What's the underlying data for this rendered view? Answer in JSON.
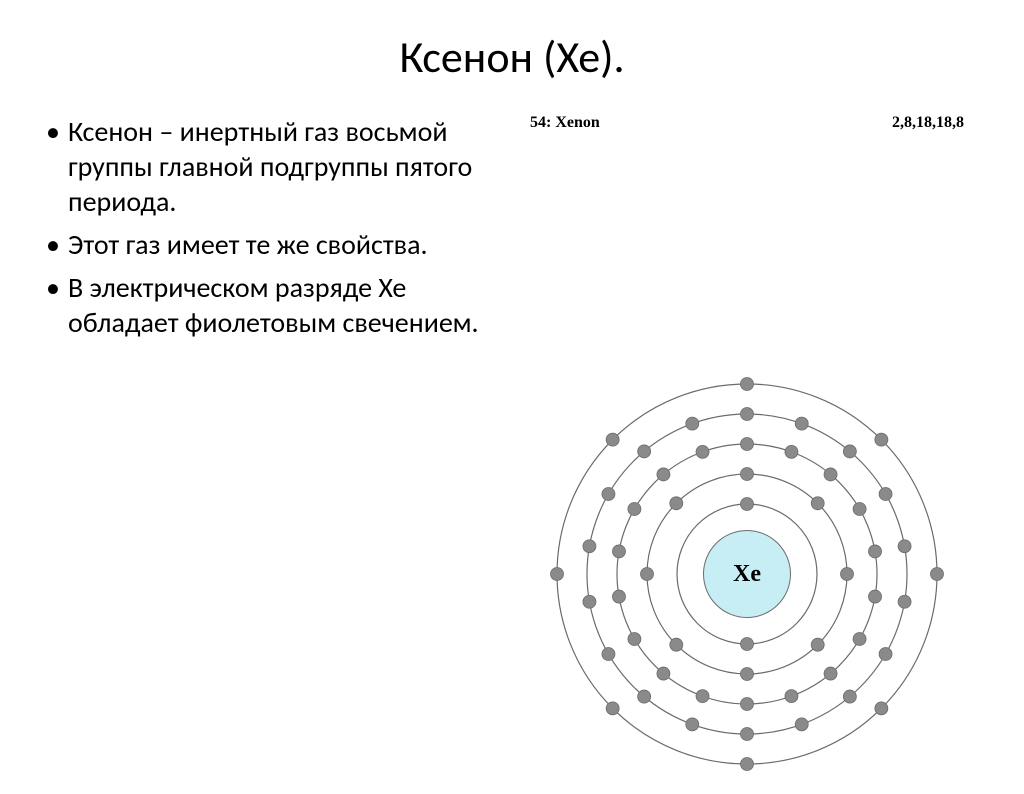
{
  "title": "Ксенон (Хе).",
  "bullets": [
    "Ксенон – инертный газ восьмой группы главной подгруппы пятого периода.",
    "Этот газ имеет те же свойства.",
    "В электрическом разряде Xe обладает фиолетовым свечением."
  ],
  "atom": {
    "label_left": "54: Xenon",
    "label_right": "2,8,18,18,8",
    "nucleus_label": "Xe",
    "nucleus_fill": "#c7eef4",
    "nucleus_stroke": "#6b6b6b",
    "nucleus_radius": 44,
    "nucleus_fontsize": 24,
    "nucleus_text_color": "#000000",
    "shell_stroke": "#6b6b6b",
    "shell_stroke_width": 1.2,
    "electron_fill": "#8a8a8a",
    "electron_stroke": "#6b6b6b",
    "electron_radius": 6.5,
    "shells": [
      {
        "radius": 70,
        "count": 2
      },
      {
        "radius": 100,
        "count": 8
      },
      {
        "radius": 130,
        "count": 18
      },
      {
        "radius": 160,
        "count": 18
      },
      {
        "radius": 190,
        "count": 8
      }
    ],
    "svg_size": 440
  },
  "colors": {
    "background": "#ffffff",
    "text": "#000000"
  }
}
